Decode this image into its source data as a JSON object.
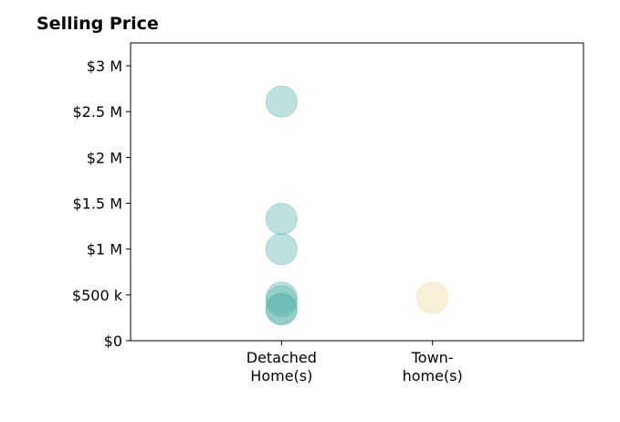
{
  "chart_data": {
    "type": "scatter",
    "title": "Selling Price",
    "xlabel": "",
    "ylabel": "",
    "categories": [
      [
        "Detached",
        "Home(s)"
      ],
      [
        "Town-",
        "home(s)"
      ]
    ],
    "xlim": [
      0,
      3
    ],
    "ylim": [
      0,
      3250000
    ],
    "yticks": [
      0,
      500000,
      1000000,
      1500000,
      2000000,
      2500000,
      3000000
    ],
    "ytick_labels": [
      "$0",
      "$500 k",
      "$1 M",
      "$1.5 M",
      "$2 M",
      "$2.5 M",
      "$3 M"
    ],
    "grid": false,
    "series": [
      {
        "category_index": 0,
        "color": "#5ab4ac",
        "values": [
          2610000,
          1330000,
          1000000,
          470000,
          430000,
          350000,
          340000
        ]
      },
      {
        "category_index": 1,
        "color": "#f1d89c",
        "values": [
          470000
        ]
      }
    ]
  }
}
